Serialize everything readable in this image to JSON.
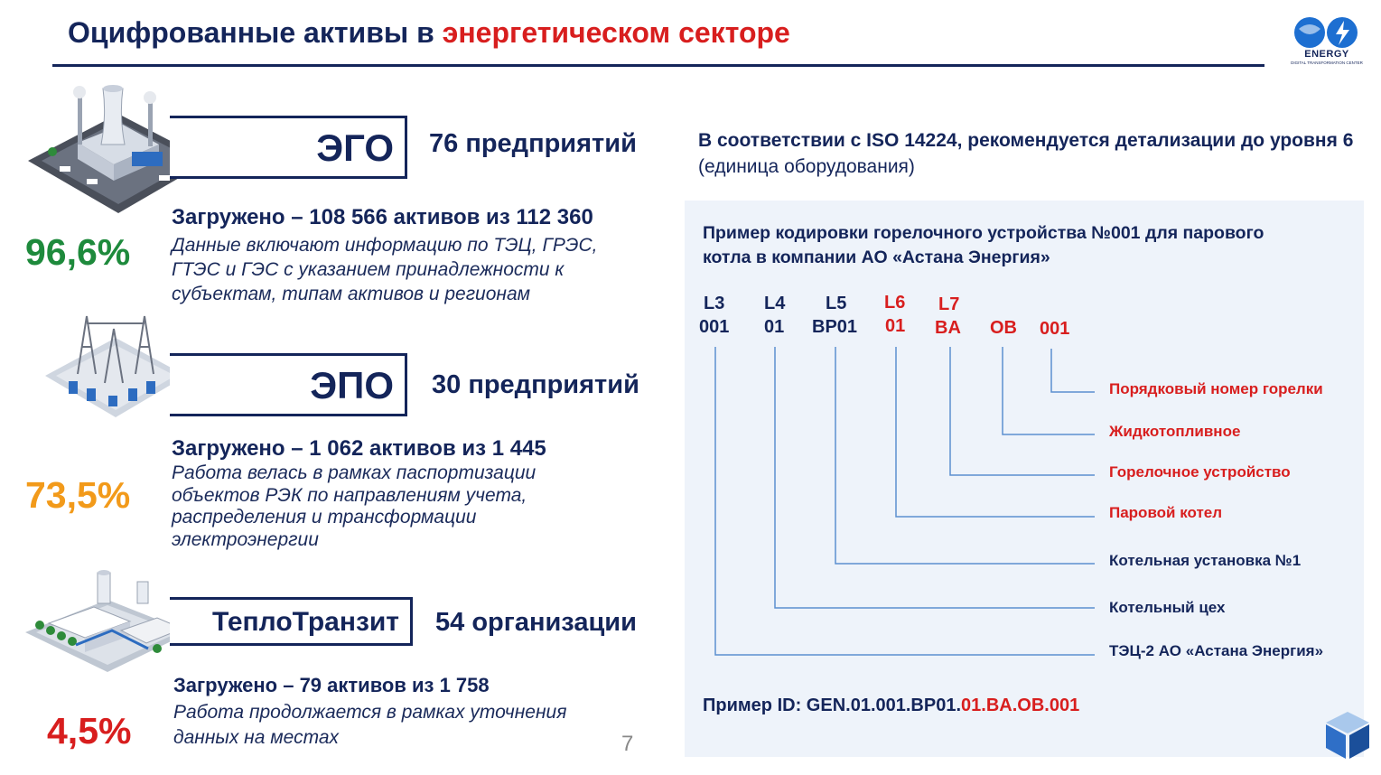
{
  "header": {
    "title_main": "Оцифрованные активы в ",
    "title_accent": "энергетическом секторе",
    "logo_text": "ENERGY",
    "logo_subtext": "DIGITAL TRANSFORMATION CENTER"
  },
  "segments": [
    {
      "name": "ЭГО",
      "count": "76 предприятий",
      "percent": "96,6%",
      "loaded": "Загружено – 108 566 активов из 112 360",
      "description": "Данные включают информацию по ТЭЦ, ГРЭС, ГТЭС и ГЭС с указанием принадлежности к субъектам, типам активов и регионам"
    },
    {
      "name": "ЭПО",
      "count": "30 предприятий",
      "percent": "73,5%",
      "loaded": "Загружено – 1 062 активов из 1 445",
      "description": "Работа велась в рамках паспортизации объектов РЭК по направлениям учета, распределения и трансформации электроэнергии"
    },
    {
      "name": "ТеплоТранзит",
      "count": "54 организации",
      "percent": "4,5%",
      "loaded": "Загружено – 79 активов из 1 758",
      "description": "Работа продолжается в рамках уточнения данных на местах"
    }
  ],
  "colors": {
    "navy": "#14255a",
    "red": "#d81e1e",
    "green": "#1e8a3c",
    "orange": "#f29a1a",
    "line_blue": "#5b8fd0"
  },
  "iso": {
    "text_bold": "В соответствии с ISO 14224, рекомендуется детализации до уровня 6",
    "text_normal": " (единица оборудования)"
  },
  "coding": {
    "title": "Пример кодировки горелочного устройства №001 для парового котла в компании АО «Астана Энергия»",
    "levels": [
      {
        "level": "L3",
        "code": "001",
        "meaning": "ТЭЦ-2 АО «Астана Энергия»",
        "highlight": false
      },
      {
        "level": "L4",
        "code": "01",
        "meaning": "Котельный цех",
        "highlight": false
      },
      {
        "level": "L5",
        "code": "BP01",
        "meaning": "Котельная установка №1",
        "highlight": false
      },
      {
        "level": "L6",
        "code": "01",
        "meaning": "Паровой котел",
        "highlight": true
      },
      {
        "level": "L7",
        "code": "BA",
        "meaning": "Горелочное устройство",
        "highlight": true
      },
      {
        "level": "",
        "code": "OB",
        "meaning": "Жидкотопливное",
        "highlight": true
      },
      {
        "level": "",
        "code": "001",
        "meaning": "Порядковый номер горелки",
        "highlight": true
      }
    ],
    "example_prefix": "Пример ID: GEN.01.001.BP01.",
    "example_suffix": "01.BA.OB.001"
  },
  "page_number": "7"
}
